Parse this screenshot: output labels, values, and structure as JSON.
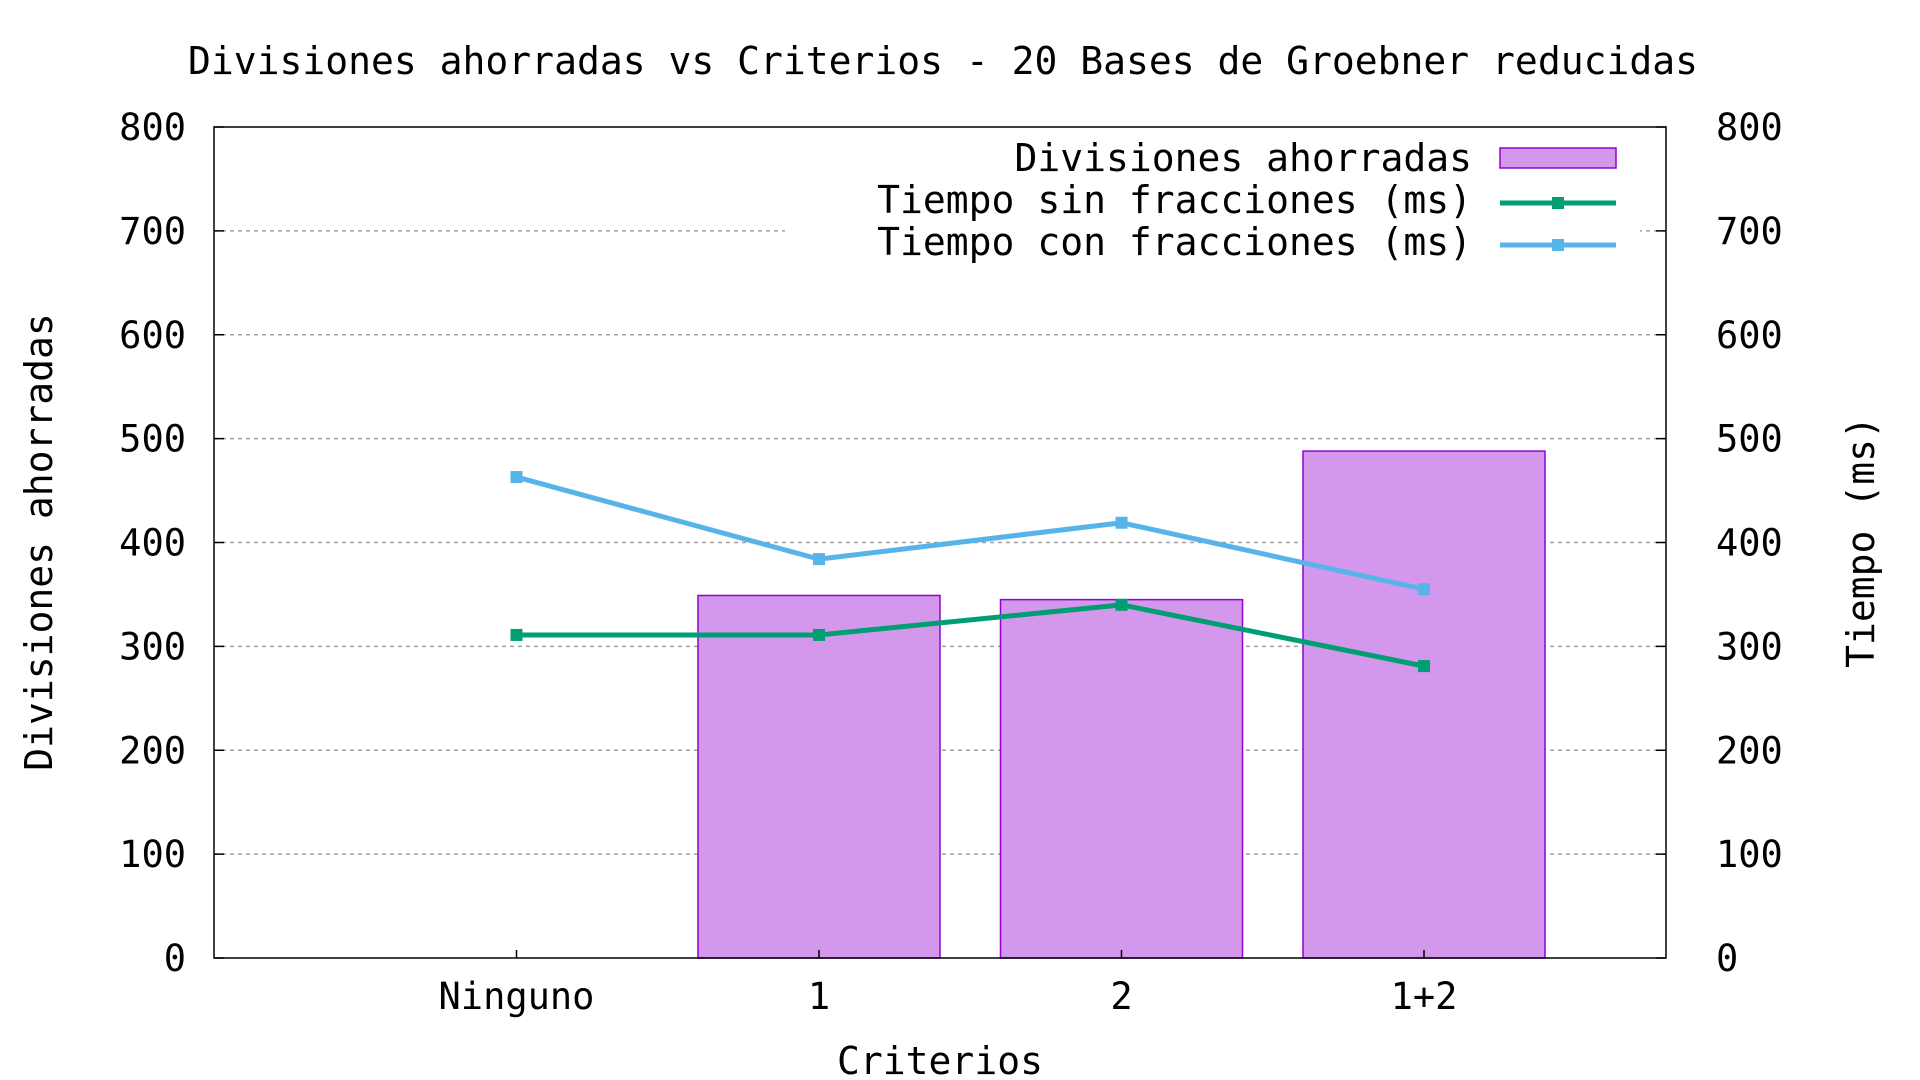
{
  "chart_data": {
    "type": "bar",
    "title": "Divisiones ahorradas vs Criterios - 20 Bases de Groebner reducidas",
    "xlabel": "Criterios",
    "ylabel": "Divisiones ahorradas",
    "y2label": "Tiempo (ms)",
    "categories": [
      "Ninguno",
      "1",
      "2",
      "1+2"
    ],
    "ylim": [
      0,
      800
    ],
    "y2lim": [
      0,
      800
    ],
    "yticks": [
      "0",
      "100",
      "200",
      "300",
      "400",
      "500",
      "600",
      "700",
      "800"
    ],
    "y2ticks": [
      "0",
      "100",
      "200",
      "300",
      "400",
      "500",
      "600",
      "700",
      "800"
    ],
    "grid": true,
    "legend_position": "top-right",
    "series": [
      {
        "name": "Divisiones ahorradas",
        "type": "bar",
        "axis": "y",
        "values": [
          0,
          349,
          345,
          488
        ],
        "color": "#d397ec",
        "edge_color": "#9400d3"
      },
      {
        "name": "Tiempo sin fracciones (ms)",
        "type": "line",
        "axis": "y2",
        "values": [
          311,
          311,
          340,
          281
        ],
        "color": "#009e73"
      },
      {
        "name": "Tiempo con fracciones (ms)",
        "type": "line",
        "axis": "y2",
        "values": [
          463,
          384,
          419,
          355
        ],
        "color": "#56b4e9"
      }
    ]
  }
}
